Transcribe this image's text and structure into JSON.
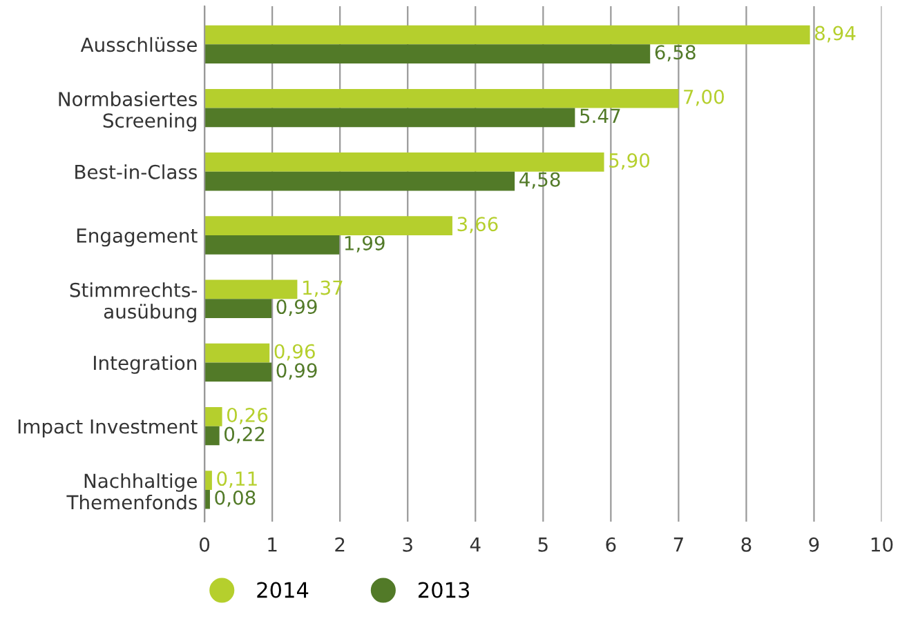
{
  "chart_data": {
    "type": "bar",
    "orientation": "horizontal",
    "categories": [
      "Ausschlüsse",
      "Normbasiertes\nScreening",
      "Best-in-Class",
      "Engagement",
      "Stimmrechts-\nausübung",
      "Integration",
      "Impact Investment",
      "Nachhaltige\nThemenfonds"
    ],
    "series": [
      {
        "name": "2014",
        "color": "#b5cf2d",
        "values": [
          8.94,
          7.0,
          5.9,
          3.66,
          1.37,
          0.96,
          0.26,
          0.11
        ],
        "value_labels": [
          "8,94",
          "7,00",
          "5,90",
          "3,66",
          "1,37",
          "0,96",
          "0,26",
          "0,11"
        ]
      },
      {
        "name": "2013",
        "color": "#527a28",
        "values": [
          6.58,
          5.47,
          4.58,
          1.99,
          0.99,
          0.99,
          0.22,
          0.08
        ],
        "value_labels": [
          "6,58",
          "5.47",
          "4,58",
          "1,99",
          "0,99",
          "0,99",
          "0,22",
          "0,08"
        ]
      }
    ],
    "xlim": [
      0,
      10
    ],
    "xticks": [
      0,
      1,
      2,
      3,
      4,
      5,
      6,
      7,
      8,
      9,
      10
    ],
    "grid": "x",
    "legend": "bottom left"
  }
}
